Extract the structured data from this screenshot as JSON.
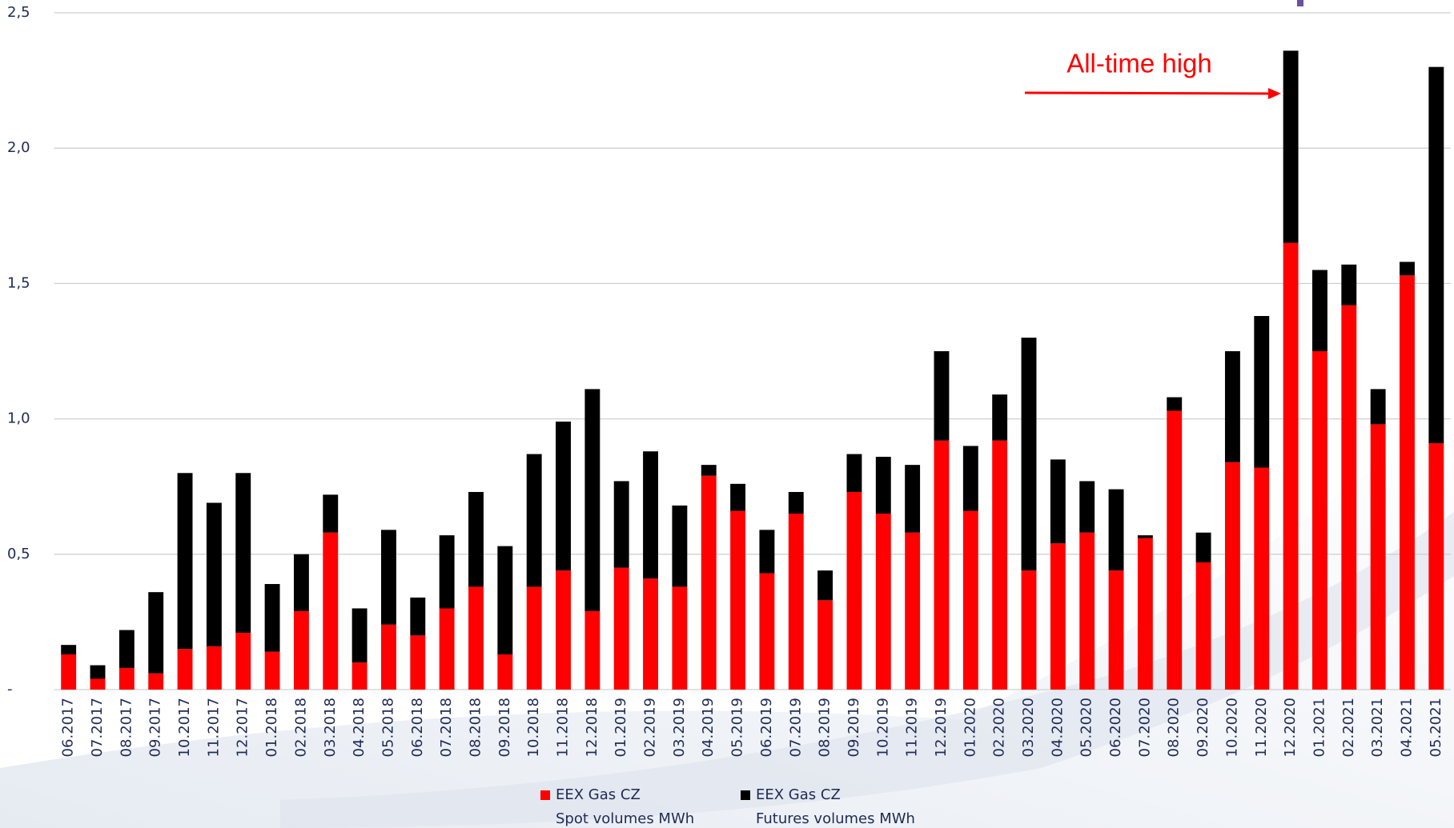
{
  "chart_data": {
    "type": "stacked_bar",
    "annotation": "All-time high",
    "categories": [
      "06.2017",
      "07.2017",
      "08.2017",
      "09.2017",
      "10.2017",
      "11.2017",
      "12.2017",
      "01.2018",
      "02.2018",
      "03.2018",
      "04.2018",
      "05.2018",
      "06.2018",
      "07.2018",
      "08.2018",
      "09.2018",
      "10.2018",
      "11.2018",
      "12.2018",
      "01.2019",
      "02.2019",
      "03.2019",
      "04.2019",
      "05.2019",
      "06.2019",
      "07.2019",
      "08.2019",
      "09.2019",
      "10.2019",
      "11.2019",
      "12.2019",
      "01.2020",
      "02.2020",
      "03.2020",
      "04.2020",
      "05.2020",
      "06.2020",
      "07.2020",
      "08.2020",
      "09.2020",
      "10.2020",
      "11.2020",
      "12.2020",
      "01.2021",
      "02.2021",
      "03.2021",
      "04.2021",
      "05.2021"
    ],
    "series": [
      {
        "name": "EEX Gas CZ\nSpot volumes MWh",
        "color": "#ff0000",
        "values": [
          0.13,
          0.04,
          0.08,
          0.06,
          0.15,
          0.16,
          0.21,
          0.14,
          0.29,
          0.58,
          0.1,
          0.24,
          0.2,
          0.3,
          0.38,
          0.13,
          0.38,
          0.44,
          0.29,
          0.45,
          0.41,
          0.38,
          0.79,
          0.66,
          0.43,
          0.65,
          0.33,
          0.73,
          0.65,
          0.58,
          0.92,
          0.66,
          0.92,
          0.44,
          0.54,
          0.58,
          0.44,
          0.56,
          1.03,
          0.47,
          0.84,
          0.82,
          1.65,
          1.25,
          1.42,
          0.98,
          1.53,
          0.91
        ]
      },
      {
        "name": "EEX Gas CZ\nFutures volumes MWh",
        "color": "#000000",
        "values": [
          0.035,
          0.05,
          0.14,
          0.3,
          0.65,
          0.53,
          0.59,
          0.25,
          0.21,
          0.14,
          0.2,
          0.35,
          0.14,
          0.27,
          0.35,
          0.4,
          0.49,
          0.55,
          0.82,
          0.32,
          0.47,
          0.3,
          0.04,
          0.1,
          0.16,
          0.08,
          0.11,
          0.14,
          0.21,
          0.25,
          0.33,
          0.24,
          0.17,
          0.86,
          0.31,
          0.19,
          0.3,
          0.01,
          0.05,
          0.11,
          0.41,
          0.56,
          0.71,
          0.3,
          0.15,
          0.13,
          0.05,
          1.39
        ]
      }
    ],
    "ylim": [
      0,
      2.5
    ],
    "yticks": [
      {
        "value": 0,
        "label": "-"
      },
      {
        "value": 0.5,
        "label": "0,5"
      },
      {
        "value": 1,
        "label": "1,0"
      },
      {
        "value": 1.5,
        "label": "1,5"
      },
      {
        "value": 2,
        "label": "2,0"
      },
      {
        "value": 2.5,
        "label": "2,5"
      }
    ],
    "grid": true
  }
}
